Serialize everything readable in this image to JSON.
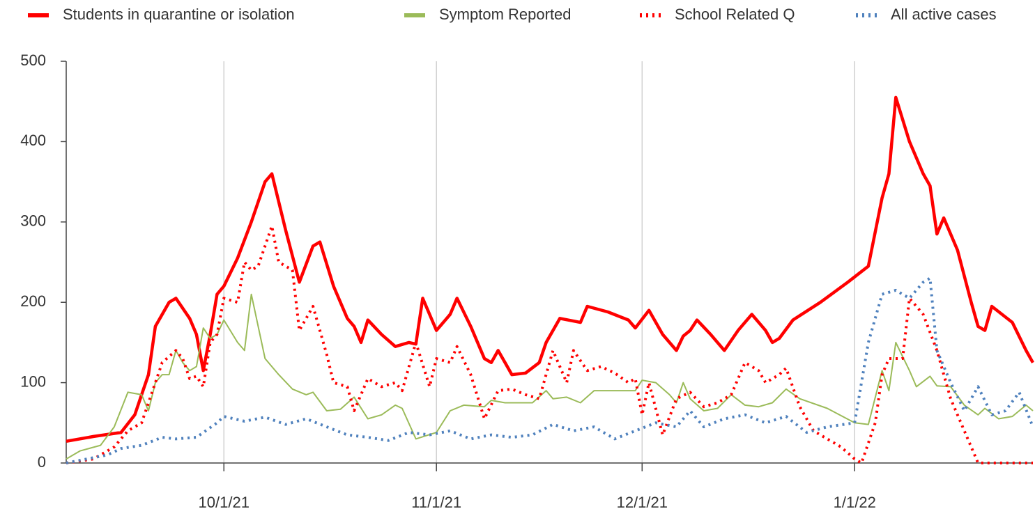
{
  "chart_data": {
    "type": "line",
    "xlim": [
      "9/8/21",
      "1/27/22"
    ],
    "xticks": [
      "10/1/21",
      "11/1/21",
      "12/1/21",
      "1/1/22"
    ],
    "ylim": [
      0,
      500
    ],
    "yticks": [
      0,
      100,
      200,
      300,
      400,
      500
    ],
    "grid": "x",
    "legend": "top",
    "series": [
      {
        "name": "Students in quarantine or isolation",
        "color": "#ff0000",
        "style": "solid-thick",
        "x": [
          "9/8/21",
          "9/12/21",
          "9/16/21",
          "9/18/21",
          "9/19/21",
          "9/20/21",
          "9/21/21",
          "9/23/21",
          "9/24/21",
          "9/26/21",
          "9/27/21",
          "9/28/21",
          "9/29/21",
          "9/30/21",
          "10/1/21",
          "10/3/21",
          "10/5/21",
          "10/7/21",
          "10/8/21",
          "10/10/21",
          "10/12/21",
          "10/14/21",
          "10/15/21",
          "10/17/21",
          "10/19/21",
          "10/20/21",
          "10/21/21",
          "10/22/21",
          "10/24/21",
          "10/26/21",
          "10/28/21",
          "10/29/21",
          "10/30/21",
          "11/1/21",
          "11/3/21",
          "11/4/21",
          "11/6/21",
          "11/8/21",
          "11/9/21",
          "11/10/21",
          "11/11/21",
          "11/12/21",
          "11/14/21",
          "11/16/21",
          "11/17/21",
          "11/19/21",
          "11/22/21",
          "11/23/21",
          "11/26/21",
          "11/29/21",
          "11/30/21",
          "12/2/21",
          "12/4/21",
          "12/6/21",
          "12/7/21",
          "12/8/21",
          "12/9/21",
          "12/11/21",
          "12/13/21",
          "12/15/21",
          "12/17/21",
          "12/19/21",
          "12/20/21",
          "12/21/21",
          "12/23/21",
          "12/27/21",
          "12/31/21",
          "1/3/22",
          "1/5/22",
          "1/6/22",
          "1/7/22",
          "1/9/22",
          "1/11/22",
          "1/12/22",
          "1/13/22",
          "1/14/22",
          "1/16/22",
          "1/18/22",
          "1/19/22",
          "1/20/22",
          "1/21/22",
          "1/24/22",
          "1/26/22",
          "1/27/22"
        ],
        "values": [
          27,
          33,
          38,
          60,
          85,
          110,
          170,
          200,
          205,
          180,
          160,
          115,
          160,
          210,
          220,
          255,
          300,
          350,
          360,
          290,
          225,
          270,
          275,
          220,
          180,
          170,
          150,
          178,
          160,
          145,
          150,
          148,
          205,
          165,
          185,
          205,
          170,
          130,
          125,
          140,
          125,
          110,
          112,
          125,
          150,
          180,
          175,
          195,
          188,
          178,
          168,
          190,
          160,
          140,
          158,
          165,
          178,
          160,
          140,
          165,
          185,
          165,
          150,
          155,
          178,
          200,
          225,
          245,
          330,
          360,
          455,
          400,
          360,
          345,
          285,
          305,
          265,
          200,
          170,
          165,
          195,
          175,
          140,
          125
        ]
      },
      {
        "name": "Symptom Reported",
        "color": "#9bbb59",
        "style": "solid-thin",
        "x": [
          "9/8/21",
          "9/10/21",
          "9/13/21",
          "9/15/21",
          "9/17/21",
          "9/19/21",
          "9/20/21",
          "9/21/21",
          "9/22/21",
          "9/23/21",
          "9/24/21",
          "9/25/21",
          "9/26/21",
          "9/27/21",
          "9/28/21",
          "9/29/21",
          "9/30/21",
          "10/1/21",
          "10/3/21",
          "10/4/21",
          "10/5/21",
          "10/7/21",
          "10/9/21",
          "10/11/21",
          "10/13/21",
          "10/14/21",
          "10/16/21",
          "10/18/21",
          "10/20/21",
          "10/22/21",
          "10/24/21",
          "10/26/21",
          "10/27/21",
          "10/29/21",
          "11/1/21",
          "11/3/21",
          "11/5/21",
          "11/8/21",
          "11/9/21",
          "11/11/21",
          "11/15/21",
          "11/17/21",
          "11/18/21",
          "11/20/21",
          "11/22/21",
          "11/24/21",
          "11/28/21",
          "11/30/21",
          "12/1/21",
          "12/3/21",
          "12/5/21",
          "12/6/21",
          "12/7/21",
          "12/8/21",
          "12/10/21",
          "12/12/21",
          "12/14/21",
          "12/16/21",
          "12/18/21",
          "12/20/21",
          "12/22/21",
          "12/24/21",
          "12/28/21",
          "1/1/22",
          "1/3/22",
          "1/5/22",
          "1/6/22",
          "1/7/22",
          "1/9/22",
          "1/10/22",
          "1/12/22",
          "1/13/22",
          "1/15/22",
          "1/17/22",
          "1/19/22",
          "1/20/22",
          "1/22/22",
          "1/24/22",
          "1/26/22",
          "1/27/22"
        ],
        "values": [
          5,
          15,
          22,
          45,
          88,
          85,
          65,
          100,
          110,
          110,
          140,
          125,
          115,
          120,
          168,
          155,
          160,
          178,
          150,
          140,
          210,
          130,
          110,
          92,
          85,
          88,
          65,
          67,
          82,
          55,
          60,
          72,
          68,
          30,
          38,
          65,
          72,
          70,
          78,
          75,
          75,
          90,
          80,
          82,
          75,
          90,
          90,
          90,
          103,
          100,
          85,
          75,
          100,
          80,
          65,
          68,
          85,
          72,
          70,
          75,
          92,
          80,
          68,
          50,
          48,
          115,
          90,
          150,
          115,
          95,
          108,
          96,
          95,
          72,
          60,
          68,
          55,
          58,
          72,
          65
        ]
      },
      {
        "name": "School Related Q",
        "color": "#ff0000",
        "style": "dotted",
        "x": [
          "9/8/21",
          "9/12/21",
          "9/15/21",
          "9/17/21",
          "9/19/21",
          "9/21/21",
          "9/22/21",
          "9/24/21",
          "9/25/21",
          "9/26/21",
          "9/27/21",
          "9/28/21",
          "9/29/21",
          "9/30/21",
          "10/1/21",
          "10/3/21",
          "10/4/21",
          "10/5/21",
          "10/6/21",
          "10/8/21",
          "10/9/21",
          "10/11/21",
          "10/12/21",
          "10/14/21",
          "10/16/21",
          "10/17/21",
          "10/19/21",
          "10/20/21",
          "10/22/21",
          "10/24/21",
          "10/26/21",
          "10/27/21",
          "10/29/21",
          "10/31/21",
          "11/1/21",
          "11/3/21",
          "11/4/21",
          "11/6/21",
          "11/8/21",
          "11/10/21",
          "11/12/21",
          "11/14/21",
          "11/16/21",
          "11/18/21",
          "11/20/21",
          "11/21/21",
          "11/23/21",
          "11/25/21",
          "11/27/21",
          "11/29/21",
          "11/30/21",
          "12/1/21",
          "12/2/21",
          "12/4/21",
          "12/6/21",
          "12/8/21",
          "12/10/21",
          "12/12/21",
          "12/14/21",
          "12/16/21",
          "12/18/21",
          "12/19/21",
          "12/21/21",
          "12/22/21",
          "12/24/21",
          "12/26/21",
          "12/28/21",
          "12/30/21",
          "1/1/22",
          "1/2/22",
          "1/4/22",
          "1/5/22",
          "1/6/22",
          "1/8/22",
          "1/9/22",
          "1/11/22",
          "1/13/22",
          "1/15/22",
          "1/17/22",
          "1/19/22",
          "1/27/22"
        ],
        "values": [
          0,
          5,
          20,
          40,
          50,
          100,
          125,
          140,
          130,
          105,
          108,
          95,
          150,
          160,
          205,
          200,
          250,
          240,
          245,
          295,
          250,
          240,
          165,
          195,
          135,
          100,
          95,
          65,
          105,
          95,
          100,
          90,
          150,
          95,
          130,
          125,
          145,
          110,
          55,
          90,
          92,
          85,
          80,
          140,
          100,
          140,
          115,
          120,
          112,
          100,
          105,
          60,
          100,
          35,
          80,
          88,
          70,
          75,
          85,
          125,
          115,
          100,
          110,
          118,
          70,
          40,
          30,
          20,
          5,
          0,
          50,
          110,
          130,
          130,
          205,
          185,
          140,
          80,
          40,
          0,
          0
        ]
      },
      {
        "name": "All active cases",
        "color": "#4f81bd",
        "style": "dotted",
        "x": [
          "9/8/21",
          "9/11/21",
          "9/14/21",
          "9/16/21",
          "9/19/21",
          "9/22/21",
          "9/24/21",
          "9/27/21",
          "9/30/21",
          "10/1/21",
          "10/4/21",
          "10/7/21",
          "10/10/21",
          "10/13/21",
          "10/16/21",
          "10/19/21",
          "10/22/21",
          "10/25/21",
          "10/28/21",
          "10/31/21",
          "11/3/21",
          "11/6/21",
          "11/9/21",
          "11/12/21",
          "11/15/21",
          "11/18/21",
          "11/21/21",
          "11/24/21",
          "11/27/21",
          "11/30/21",
          "12/3/21",
          "12/6/21",
          "12/8/21",
          "12/10/21",
          "12/13/21",
          "12/16/21",
          "12/19/21",
          "12/22/21",
          "12/25/21",
          "12/28/21",
          "1/1/22",
          "1/3/22",
          "1/5/22",
          "1/7/22",
          "1/9/22",
          "1/11/22",
          "1/12/22",
          "1/13/22",
          "1/15/22",
          "1/17/22",
          "1/19/22",
          "1/21/22",
          "1/23/22",
          "1/25/22",
          "1/27/22"
        ],
        "values": [
          0,
          5,
          10,
          18,
          22,
          32,
          30,
          32,
          50,
          58,
          52,
          57,
          48,
          55,
          45,
          35,
          32,
          28,
          38,
          35,
          40,
          30,
          35,
          32,
          35,
          48,
          40,
          45,
          30,
          40,
          50,
          45,
          65,
          45,
          55,
          60,
          50,
          58,
          38,
          45,
          50,
          150,
          210,
          215,
          205,
          225,
          230,
          140,
          100,
          65,
          95,
          60,
          65,
          88,
          45
        ]
      }
    ]
  }
}
